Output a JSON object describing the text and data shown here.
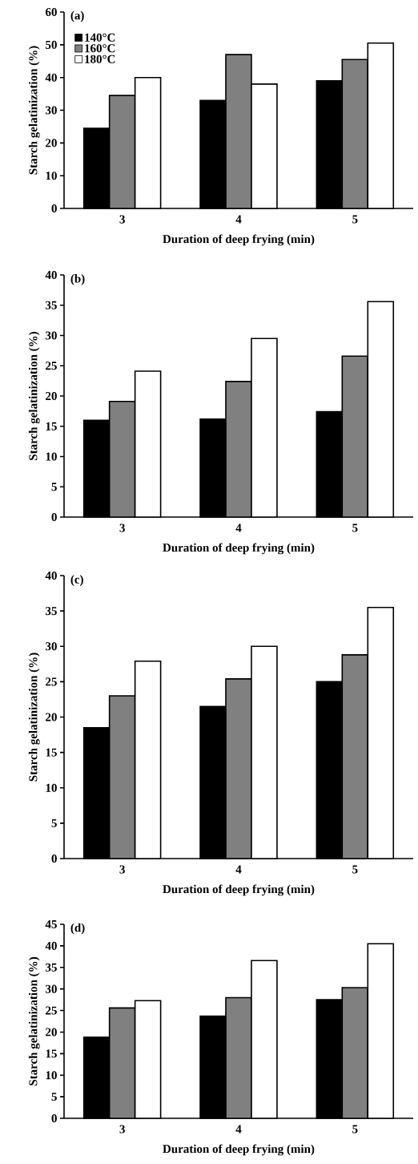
{
  "chart_data": [
    {
      "type": "bar",
      "title": "(a)",
      "xlabel": "Duration of deep frying (min)",
      "ylabel": "Starch gelatinization (%)",
      "categories": [
        "3",
        "4",
        "5"
      ],
      "series": [
        {
          "name": "140°C",
          "color": "#000000",
          "values": [
            24.5,
            33,
            39
          ]
        },
        {
          "name": "160°C",
          "color": "#808080",
          "values": [
            34.5,
            47,
            45.5
          ]
        },
        {
          "name": "180°C",
          "color": "#ffffff",
          "values": [
            40,
            38,
            50.5
          ]
        }
      ],
      "ylim": [
        0,
        60
      ],
      "yticks": [
        0,
        10,
        20,
        30,
        40,
        50,
        60
      ],
      "legend": "top left"
    },
    {
      "type": "bar",
      "title": "(b)",
      "xlabel": "Duration of deep frying (min)",
      "ylabel": "Starch gelatinization (%)",
      "categories": [
        "3",
        "4",
        "5"
      ],
      "series": [
        {
          "color": "#000000",
          "values": [
            16,
            16.2,
            17.4
          ]
        },
        {
          "color": "#808080",
          "values": [
            19.1,
            22.4,
            26.6
          ]
        },
        {
          "color": "#ffffff",
          "values": [
            24.1,
            29.5,
            35.6
          ]
        }
      ],
      "ylim": [
        0,
        40
      ],
      "yticks": [
        0,
        5,
        10,
        15,
        20,
        25,
        30,
        35,
        40
      ]
    },
    {
      "type": "bar",
      "title": "(c)",
      "xlabel": "Duration of deep frying (min)",
      "ylabel": "Starch gelatinization (%)",
      "categories": [
        "3",
        "4",
        "5"
      ],
      "series": [
        {
          "color": "#000000",
          "values": [
            18.5,
            21.5,
            25
          ]
        },
        {
          "color": "#808080",
          "values": [
            23,
            25.4,
            28.8
          ]
        },
        {
          "color": "#ffffff",
          "values": [
            27.9,
            30,
            35.5
          ]
        }
      ],
      "ylim": [
        0,
        40
      ],
      "yticks": [
        0,
        5,
        10,
        15,
        20,
        25,
        30,
        35,
        40
      ]
    },
    {
      "type": "bar",
      "title": "(d)",
      "xlabel": "Duration of deep frying (min)",
      "ylabel": "Starch gelatinization (%)",
      "categories": [
        "3",
        "4",
        "5"
      ],
      "series": [
        {
          "color": "#000000",
          "values": [
            18.8,
            23.7,
            27.5
          ]
        },
        {
          "color": "#808080",
          "values": [
            25.6,
            28,
            30.3
          ]
        },
        {
          "color": "#ffffff",
          "values": [
            27.3,
            36.6,
            40.5
          ]
        }
      ],
      "ylim": [
        0,
        45
      ],
      "yticks": [
        0,
        5,
        10,
        15,
        20,
        25,
        30,
        35,
        40,
        45
      ]
    }
  ]
}
